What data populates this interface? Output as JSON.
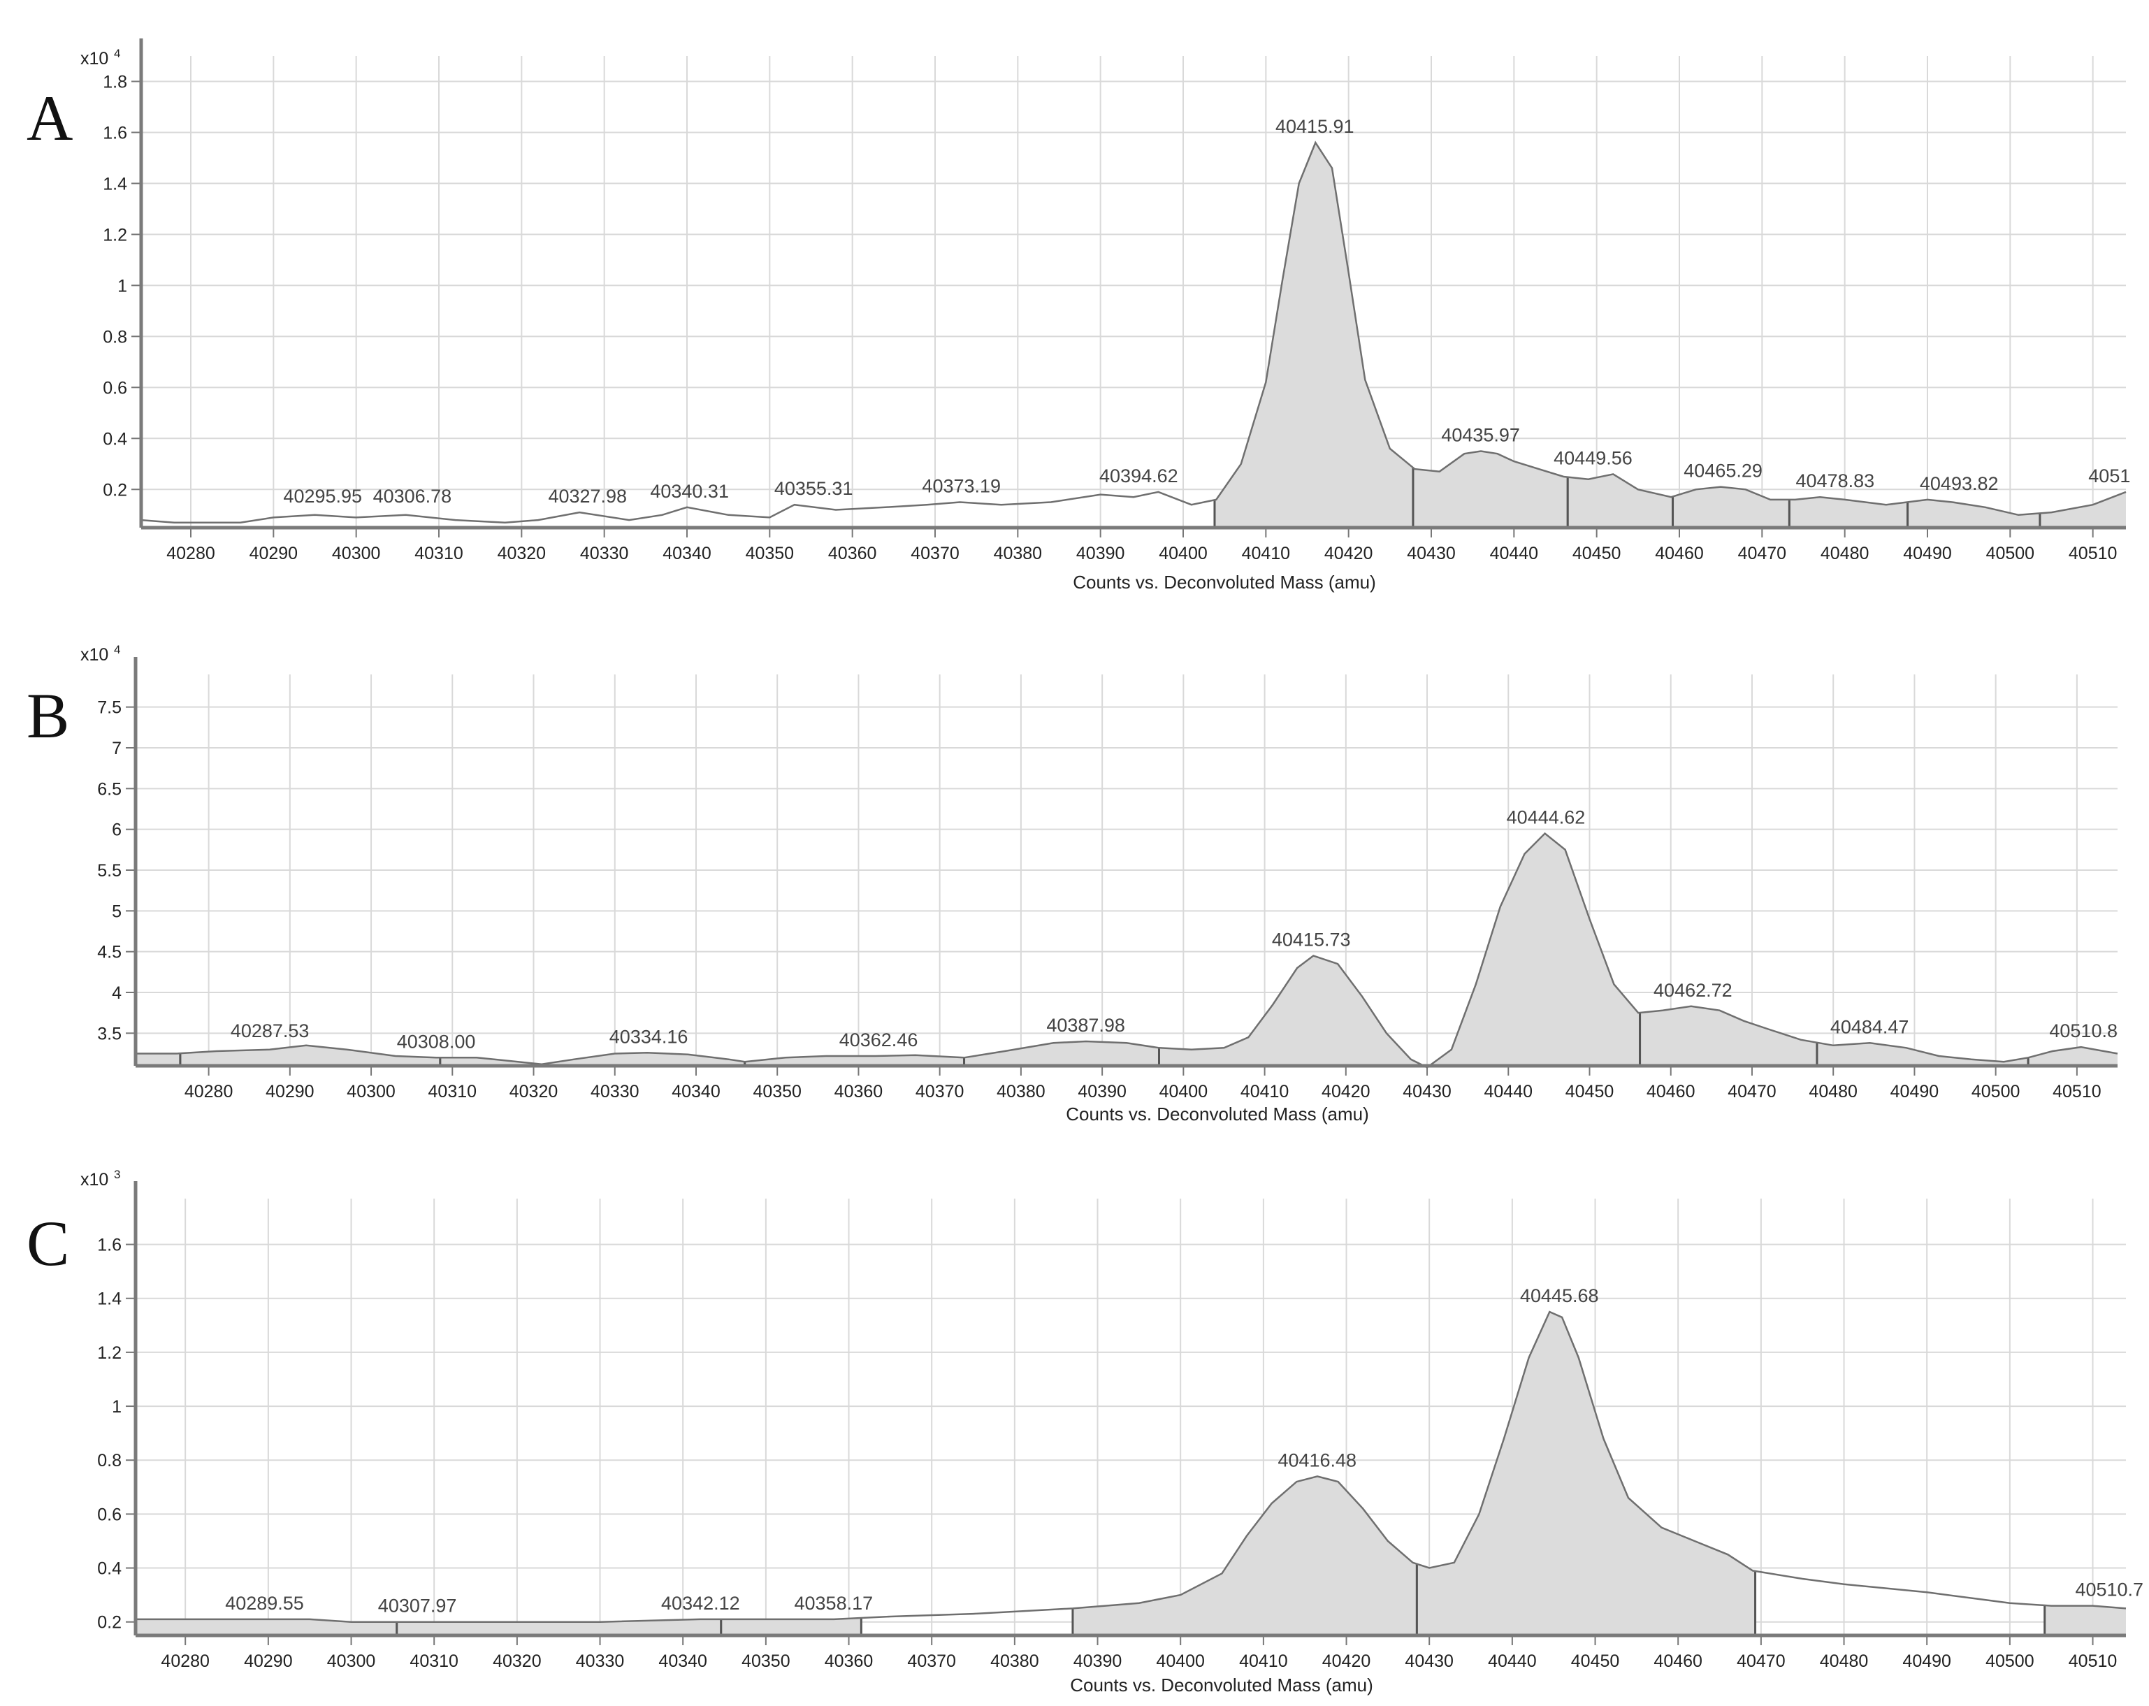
{
  "chart_data": [
    {
      "panel": "A",
      "type": "area",
      "scale_label": "x10",
      "scale_exponent": "4",
      "xlabel": "Counts vs. Deconvoluted Mass (amu)",
      "xlim": [
        40274,
        40514
      ],
      "ylim": [
        0.05,
        1.9
      ],
      "xticks": [
        "40280",
        "40290",
        "40300",
        "40310",
        "40320",
        "40330",
        "40340",
        "40350",
        "40360",
        "40370",
        "40380",
        "40390",
        "40400",
        "40410",
        "40420",
        "40430",
        "40440",
        "40450",
        "40460",
        "40470",
        "40480",
        "40490",
        "40500",
        "40510"
      ],
      "yticks": [
        "0.2",
        "0.4",
        "0.6",
        "0.8",
        "1",
        "1.2",
        "1.4",
        "1.6",
        "1.8"
      ],
      "series": [
        {
          "x": [
            40274,
            40278,
            40282,
            40286,
            40290,
            40295,
            40300,
            40306,
            40312,
            40318,
            40322,
            40327,
            40333,
            40337,
            40340,
            40345,
            40350,
            40353,
            40358,
            40364,
            40369,
            40373,
            40378,
            40384,
            40390,
            40394,
            40397,
            40401,
            40404,
            40407,
            40410,
            40412,
            40414,
            40416,
            40418,
            40420,
            40422,
            40425,
            40428,
            40431,
            40434,
            40436,
            40438,
            40440,
            40443,
            40446,
            40449,
            40452,
            40455,
            40459,
            40462,
            40465,
            40468,
            40471,
            40474,
            40477,
            40480,
            40485,
            40490,
            40493,
            40497,
            40501,
            40505,
            40510,
            40514
          ],
          "y": [
            0.08,
            0.07,
            0.07,
            0.07,
            0.09,
            0.1,
            0.09,
            0.1,
            0.08,
            0.07,
            0.08,
            0.11,
            0.08,
            0.1,
            0.13,
            0.1,
            0.09,
            0.14,
            0.12,
            0.13,
            0.14,
            0.15,
            0.14,
            0.15,
            0.18,
            0.17,
            0.19,
            0.14,
            0.16,
            0.3,
            0.62,
            1.02,
            1.4,
            1.56,
            1.46,
            1.05,
            0.63,
            0.36,
            0.28,
            0.27,
            0.34,
            0.35,
            0.34,
            0.31,
            0.28,
            0.25,
            0.24,
            0.26,
            0.2,
            0.17,
            0.2,
            0.21,
            0.2,
            0.16,
            0.16,
            0.17,
            0.16,
            0.14,
            0.16,
            0.15,
            0.13,
            0.1,
            0.11,
            0.14,
            0.19
          ],
          "fills": [
            [
              40403.8,
              40427.8
            ],
            [
              40427.8,
              40446.5
            ],
            [
              40446.5,
              40459.2
            ],
            [
              40459.2,
              40473.3
            ],
            [
              40473.3,
              40487.6
            ],
            [
              40487.6,
              40503.6
            ],
            [
              40503.6,
              40514
            ]
          ]
        }
      ],
      "peak_labels": [
        {
          "text": "40295.95",
          "x": 40295.95,
          "y": 0.11
        },
        {
          "text": "40306.78",
          "x": 40306.78,
          "y": 0.11
        },
        {
          "text": "40327.98",
          "x": 40327.98,
          "y": 0.11
        },
        {
          "text": "40340.31",
          "x": 40340.31,
          "y": 0.13
        },
        {
          "text": "40355.31",
          "x": 40355.31,
          "y": 0.14
        },
        {
          "text": "40373.19",
          "x": 40373.19,
          "y": 0.15
        },
        {
          "text": "40394.62",
          "x": 40394.62,
          "y": 0.19
        },
        {
          "text": "40415.91",
          "x": 40415.91,
          "y": 1.56
        },
        {
          "text": "40435.97",
          "x": 40435.97,
          "y": 0.35
        },
        {
          "text": "40449.56",
          "x": 40449.56,
          "y": 0.26
        },
        {
          "text": "40465.29",
          "x": 40465.29,
          "y": 0.21
        },
        {
          "text": "40478.83",
          "x": 40478.83,
          "y": 0.17
        },
        {
          "text": "40493.82",
          "x": 40493.82,
          "y": 0.16
        },
        {
          "text": "4051",
          "x": 40512,
          "y": 0.19
        }
      ]
    },
    {
      "panel": "B",
      "type": "area",
      "scale_label": "x10",
      "scale_exponent": "4",
      "xlabel": "Counts vs. Deconvoluted Mass (amu)",
      "xlim": [
        40271,
        40515
      ],
      "ylim": [
        3.1,
        7.9
      ],
      "xticks": [
        "40280",
        "40290",
        "40300",
        "40310",
        "40320",
        "40330",
        "40340",
        "40350",
        "40360",
        "40370",
        "40380",
        "40390",
        "40400",
        "40410",
        "40420",
        "40430",
        "40440",
        "40450",
        "40460",
        "40470",
        "40480",
        "40490",
        "40500",
        "40510"
      ],
      "yticks": [
        "3.5",
        "4",
        "4.5",
        "5",
        "5.5",
        "6",
        "6.5",
        "7",
        "7.5"
      ],
      "series": [
        {
          "x": [
            40271,
            40276,
            40281,
            40287.5,
            40292,
            40297,
            40303,
            40308,
            40313,
            40316,
            40321,
            40325,
            40330,
            40334,
            40339,
            40344,
            40346,
            40351,
            40356,
            40362,
            40367,
            40373,
            40378,
            40384,
            40388,
            40393,
            40397,
            40401,
            40405,
            40408,
            40411,
            40414,
            40416,
            40419,
            40422,
            40425,
            40428,
            40430,
            40433,
            40436,
            40439,
            40442,
            40444.5,
            40447,
            40450,
            40453,
            40456,
            40459,
            40462.5,
            40466,
            40469,
            40472,
            40476,
            40480,
            40484.5,
            40489,
            40493,
            40497,
            40501,
            40504,
            40507,
            40510.5,
            40515
          ],
          "y": [
            3.25,
            3.25,
            3.28,
            3.3,
            3.35,
            3.3,
            3.22,
            3.2,
            3.2,
            3.17,
            3.12,
            3.18,
            3.25,
            3.26,
            3.24,
            3.18,
            3.15,
            3.2,
            3.22,
            3.22,
            3.23,
            3.2,
            3.28,
            3.38,
            3.4,
            3.38,
            3.32,
            3.3,
            3.32,
            3.45,
            3.85,
            4.3,
            4.45,
            4.35,
            3.95,
            3.5,
            3.18,
            3.08,
            3.3,
            4.1,
            5.05,
            5.7,
            5.95,
            5.75,
            4.9,
            4.1,
            3.75,
            3.78,
            3.83,
            3.78,
            3.65,
            3.55,
            3.42,
            3.35,
            3.38,
            3.32,
            3.22,
            3.18,
            3.15,
            3.2,
            3.28,
            3.33,
            3.25
          ],
          "fills": [
            [
              40271,
              40276.5
            ],
            [
              40276.5,
              40308.5
            ],
            [
              40308.5,
              40321
            ],
            [
              40321,
              40346
            ],
            [
              40346,
              40373
            ],
            [
              40373,
              40397
            ],
            [
              40397,
              40456.2
            ],
            [
              40456.2,
              40478
            ],
            [
              40478,
              40504
            ],
            [
              40504,
              40515
            ]
          ]
        }
      ],
      "peak_labels": [
        {
          "text": "40287.53",
          "x": 40287.53,
          "y": 3.33
        },
        {
          "text": "40308.00",
          "x": 40308.0,
          "y": 3.2
        },
        {
          "text": "40334.16",
          "x": 40334.16,
          "y": 3.26
        },
        {
          "text": "40362.46",
          "x": 40362.46,
          "y": 3.22
        },
        {
          "text": "40387.98",
          "x": 40387.98,
          "y": 3.4
        },
        {
          "text": "40415.73",
          "x": 40415.73,
          "y": 4.45
        },
        {
          "text": "40444.62",
          "x": 40444.62,
          "y": 5.95
        },
        {
          "text": "40462.72",
          "x": 40462.72,
          "y": 3.83
        },
        {
          "text": "40484.47",
          "x": 40484.47,
          "y": 3.38
        },
        {
          "text": "40510.8",
          "x": 40510.8,
          "y": 3.33
        }
      ]
    },
    {
      "panel": "C",
      "type": "area",
      "scale_label": "x10",
      "scale_exponent": "3",
      "xlabel": "Counts vs. Deconvoluted Mass (amu)",
      "xlim": [
        40274,
        40514
      ],
      "ylim": [
        0.15,
        1.77
      ],
      "xticks": [
        "40280",
        "40290",
        "40300",
        "40310",
        "40320",
        "40330",
        "40340",
        "40350",
        "40360",
        "40370",
        "40380",
        "40390",
        "40400",
        "40410",
        "40420",
        "40430",
        "40440",
        "40450",
        "40460",
        "40470",
        "40480",
        "40490",
        "40500",
        "40510"
      ],
      "yticks": [
        "0.2",
        "0.4",
        "0.6",
        "0.8",
        "1",
        "1.2",
        "1.4",
        "1.6"
      ],
      "series": [
        {
          "x": [
            40274,
            40280,
            40289.5,
            40295,
            40300,
            40307.9,
            40315,
            40320,
            40330,
            40342.1,
            40350,
            40358.2,
            40365,
            40375,
            40387,
            40395,
            40400,
            40405,
            40408,
            40411,
            40414,
            40416.5,
            40419,
            40422,
            40425,
            40428,
            40430,
            40433,
            40436,
            40439,
            40442,
            40444.5,
            40446,
            40448,
            40451,
            40454,
            40458,
            40462,
            40466,
            40469,
            40475,
            40480,
            40490,
            40500,
            40505,
            40510,
            40514
          ],
          "y": [
            0.21,
            0.21,
            0.21,
            0.21,
            0.2,
            0.2,
            0.2,
            0.2,
            0.2,
            0.21,
            0.21,
            0.21,
            0.22,
            0.23,
            0.25,
            0.27,
            0.3,
            0.38,
            0.52,
            0.64,
            0.72,
            0.74,
            0.72,
            0.62,
            0.5,
            0.42,
            0.4,
            0.42,
            0.6,
            0.88,
            1.18,
            1.35,
            1.33,
            1.18,
            0.88,
            0.66,
            0.55,
            0.5,
            0.45,
            0.39,
            0.36,
            0.34,
            0.31,
            0.27,
            0.26,
            0.26,
            0.25
          ],
          "fills": [
            [
              40274,
              40305.5
            ],
            [
              40305.5,
              40344.6
            ],
            [
              40344.6,
              40361.5
            ],
            [
              40387,
              40428.5
            ],
            [
              40428.5,
              40469.3
            ],
            [
              40504.2,
              40514
            ]
          ]
        }
      ],
      "peak_labels": [
        {
          "text": "40289.55",
          "x": 40289.55,
          "y": 0.21
        },
        {
          "text": "40307.97",
          "x": 40307.97,
          "y": 0.2
        },
        {
          "text": "40342.12",
          "x": 40342.12,
          "y": 0.21
        },
        {
          "text": "40358.17",
          "x": 40358.17,
          "y": 0.21
        },
        {
          "text": "40416.48",
          "x": 40416.48,
          "y": 0.74
        },
        {
          "text": "40445.68",
          "x": 40445.68,
          "y": 1.35
        },
        {
          "text": "40510.7",
          "x": 40512,
          "y": 0.26
        }
      ]
    }
  ]
}
